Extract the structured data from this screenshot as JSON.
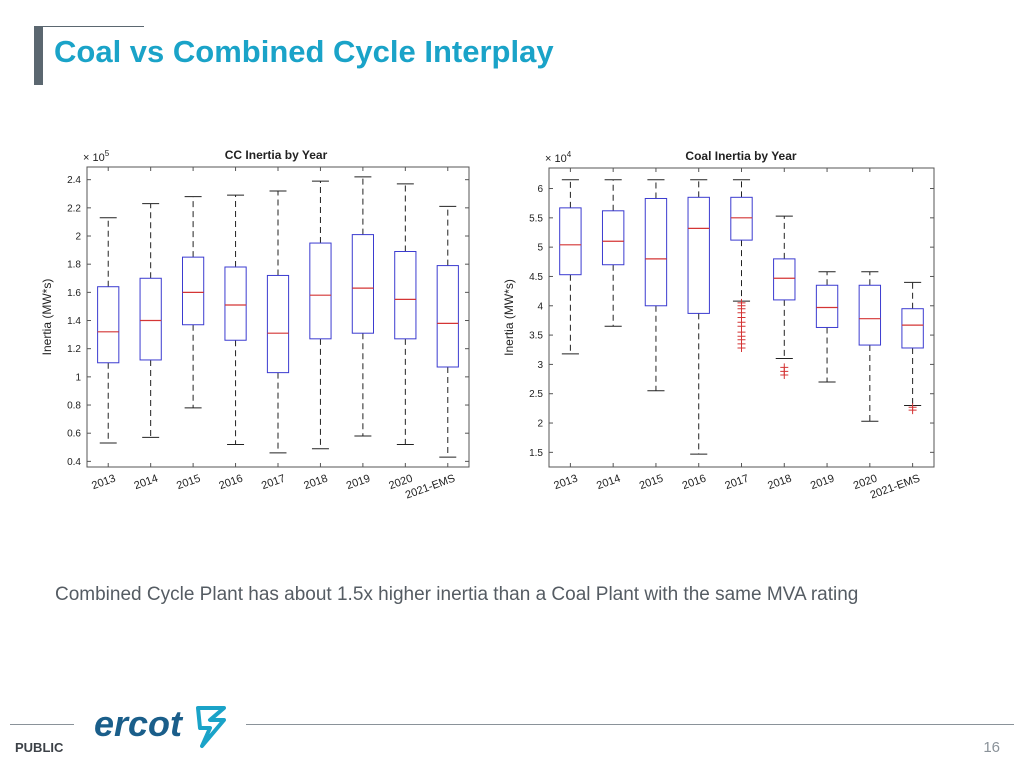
{
  "slide": {
    "title": "Coal vs Combined Cycle Interplay",
    "subtitle": "Combined Cycle Plant has about 1.5x higher inertia than a Coal Plant with the same MVA rating",
    "footer_label": "PUBLIC",
    "page_number": "16",
    "logo_text": "ercot",
    "colors": {
      "title": "#1aa3c8",
      "box": "#3b3bd0",
      "median": "#d43535",
      "outlier": "#d43535",
      "whisker": "#222222",
      "logo": "#1a5e8a",
      "logo_mark": "#1aa3c8"
    }
  },
  "chart_data": [
    {
      "type": "boxplot",
      "title": "CC Inertia by Year",
      "ylabel": "Inertia (MW*s)",
      "xlabel": "",
      "exponent_label": "× 10^5",
      "exponent_base": "× 10",
      "exponent_power": "5",
      "ylim": [
        0.36,
        2.49
      ],
      "yticks": [
        0.4,
        0.6,
        0.8,
        1,
        1.2,
        1.4,
        1.6,
        1.8,
        2,
        2.2,
        2.4
      ],
      "ytick_labels": [
        "0.4",
        "0.6",
        "0.8",
        "1",
        "1.2",
        "1.4",
        "1.6",
        "1.8",
        "2",
        "2.2",
        "2.4"
      ],
      "categories": [
        "2013",
        "2014",
        "2015",
        "2016",
        "2017",
        "2018",
        "2019",
        "2020",
        "2021-EMS"
      ],
      "boxes": [
        {
          "min": 0.53,
          "q1": 1.1,
          "median": 1.32,
          "q3": 1.64,
          "max": 2.13,
          "outliers": []
        },
        {
          "min": 0.57,
          "q1": 1.12,
          "median": 1.4,
          "q3": 1.7,
          "max": 2.23,
          "outliers": []
        },
        {
          "min": 0.78,
          "q1": 1.37,
          "median": 1.6,
          "q3": 1.85,
          "max": 2.28,
          "outliers": []
        },
        {
          "min": 0.52,
          "q1": 1.26,
          "median": 1.51,
          "q3": 1.78,
          "max": 2.29,
          "outliers": []
        },
        {
          "min": 0.46,
          "q1": 1.03,
          "median": 1.31,
          "q3": 1.72,
          "max": 2.32,
          "outliers": []
        },
        {
          "min": 0.49,
          "q1": 1.27,
          "median": 1.58,
          "q3": 1.95,
          "max": 2.39,
          "outliers": []
        },
        {
          "min": 0.58,
          "q1": 1.31,
          "median": 1.63,
          "q3": 2.01,
          "max": 2.42,
          "outliers": []
        },
        {
          "min": 0.52,
          "q1": 1.27,
          "median": 1.55,
          "q3": 1.89,
          "max": 2.37,
          "outliers": []
        },
        {
          "min": 0.43,
          "q1": 1.07,
          "median": 1.38,
          "q3": 1.79,
          "max": 2.21,
          "outliers": []
        }
      ]
    },
    {
      "type": "boxplot",
      "title": "Coal Inertia by Year",
      "ylabel": "Inertia (MW*s)",
      "xlabel": "",
      "exponent_label": "× 10^4",
      "exponent_base": "× 10",
      "exponent_power": "4",
      "ylim": [
        1.25,
        6.35
      ],
      "yticks": [
        1.5,
        2,
        2.5,
        3,
        3.5,
        4,
        4.5,
        5,
        5.5,
        6
      ],
      "ytick_labels": [
        "1.5",
        "2",
        "2.5",
        "3",
        "3.5",
        "4",
        "4.5",
        "5",
        "5.5",
        "6"
      ],
      "categories": [
        "2013",
        "2014",
        "2015",
        "2016",
        "2017",
        "2018",
        "2019",
        "2020",
        "2021-EMS"
      ],
      "boxes": [
        {
          "min": 3.18,
          "q1": 4.53,
          "median": 5.04,
          "q3": 5.67,
          "max": 6.15,
          "outliers": []
        },
        {
          "min": 3.65,
          "q1": 4.7,
          "median": 5.1,
          "q3": 5.62,
          "max": 6.15,
          "outliers": []
        },
        {
          "min": 2.55,
          "q1": 4.0,
          "median": 4.8,
          "q3": 5.83,
          "max": 6.15,
          "outliers": []
        },
        {
          "min": 1.47,
          "q1": 3.87,
          "median": 5.32,
          "q3": 5.85,
          "max": 6.15,
          "outliers": []
        },
        {
          "min": 4.08,
          "q1": 5.12,
          "median": 5.5,
          "q3": 5.85,
          "max": 6.15,
          "outliers": [
            4.05,
            4.0,
            3.95,
            3.88,
            3.8,
            3.72,
            3.65,
            3.55,
            3.48,
            3.42,
            3.35,
            3.28
          ]
        },
        {
          "min": 3.1,
          "q1": 4.1,
          "median": 4.47,
          "q3": 4.8,
          "max": 5.53,
          "outliers": [
            2.95,
            2.88,
            2.82
          ]
        },
        {
          "min": 2.7,
          "q1": 3.63,
          "median": 3.97,
          "q3": 4.35,
          "max": 4.58,
          "outliers": []
        },
        {
          "min": 2.03,
          "q1": 3.33,
          "median": 3.78,
          "q3": 4.35,
          "max": 4.58,
          "outliers": []
        },
        {
          "min": 2.3,
          "q1": 3.28,
          "median": 3.67,
          "q3": 3.95,
          "max": 4.4,
          "outliers": [
            2.27,
            2.22
          ]
        }
      ]
    }
  ]
}
